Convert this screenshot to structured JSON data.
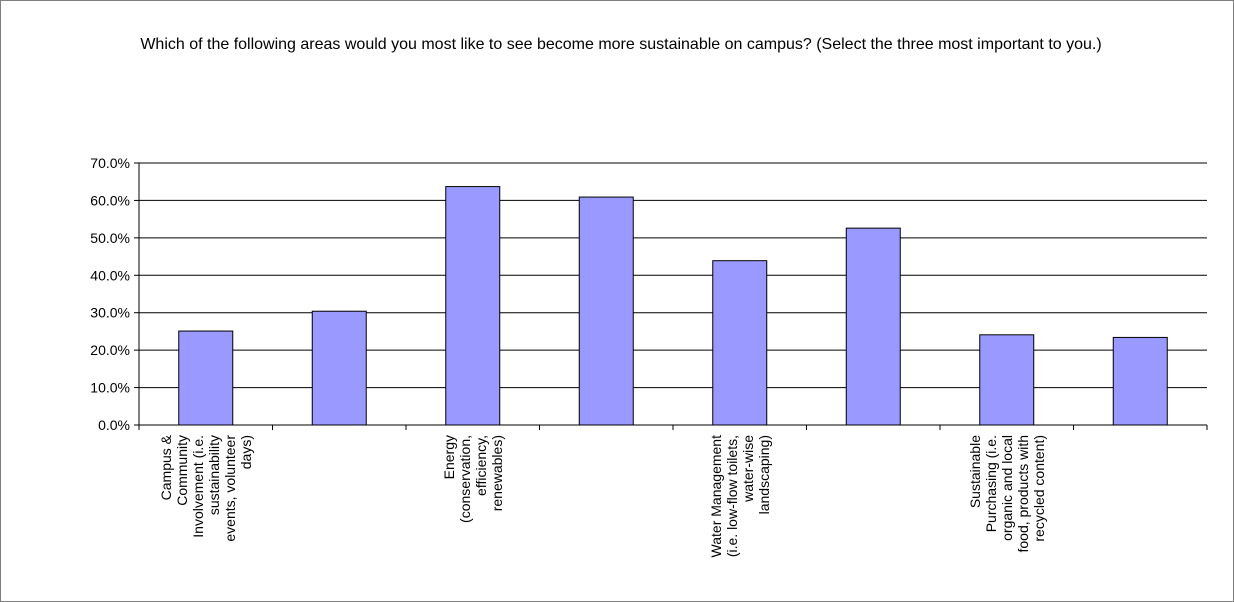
{
  "chart_data": {
    "type": "bar",
    "title": "Which of the following areas would you most like to see become more sustainable on campus? (Select the three most important to you.)",
    "categories": [
      "Campus & Community Involvement (i.e. sustainability events, volunteer days)",
      "",
      "Energy (conservation, efficiency, renewables)",
      "",
      "Water Management (i.e. low-flow toilets, water-wise landscaping)",
      "",
      "Sustainable Purchasing (i.e. organic and local food, products with recycled content)",
      ""
    ],
    "category_label_lines": [
      [
        "Campus &",
        "Community",
        "Involvement (i.e.",
        "sustainability",
        "events, volunteer",
        "days)"
      ],
      [],
      [
        "Energy",
        "(conservation,",
        "efficiency,",
        "renewables)"
      ],
      [],
      [
        "Water Management",
        "(i.e. low-flow toilets,",
        "water-wise",
        "landscaping)"
      ],
      [],
      [
        "Sustainable",
        "Purchasing (i.e.",
        "organic and local",
        "food, products with",
        "recycled content)"
      ],
      []
    ],
    "values": [
      25.1,
      30.4,
      63.7,
      60.9,
      43.9,
      52.6,
      24.1,
      23.4
    ],
    "ylim": [
      0,
      70
    ],
    "yticks": [
      "0.0%",
      "10.0%",
      "20.0%",
      "30.0%",
      "40.0%",
      "50.0%",
      "60.0%",
      "70.0%"
    ],
    "ytick_values": [
      0,
      10,
      20,
      30,
      40,
      50,
      60,
      70
    ],
    "grid": true,
    "legend": "none",
    "bar_color": "#9999ff",
    "bar_edge_color": "#000000",
    "grid_color": "#000000"
  }
}
